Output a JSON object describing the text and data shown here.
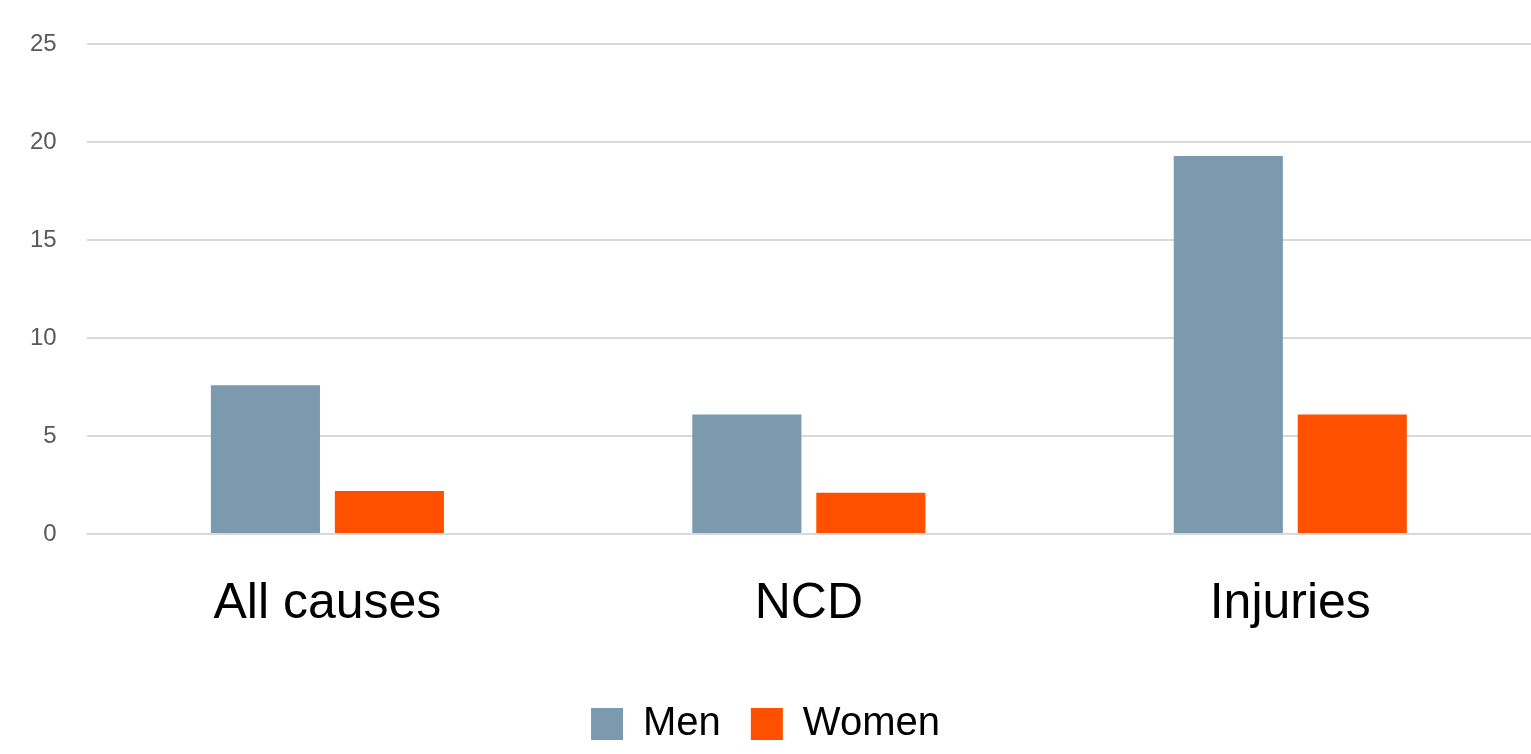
{
  "chart_data": {
    "type": "bar",
    "categories": [
      "All causes",
      "NCD",
      "Injuries"
    ],
    "series": [
      {
        "name": "Men",
        "color": "#7b9aae",
        "values": [
          7.6,
          6.1,
          19.3
        ]
      },
      {
        "name": "Women",
        "color": "#ff5000",
        "values": [
          2.2,
          2.1,
          6.1
        ]
      }
    ],
    "ylim": [
      0,
      25
    ],
    "yticks": [
      0,
      5,
      10,
      15,
      20,
      25
    ],
    "grid": "y",
    "legend": "bottom"
  }
}
